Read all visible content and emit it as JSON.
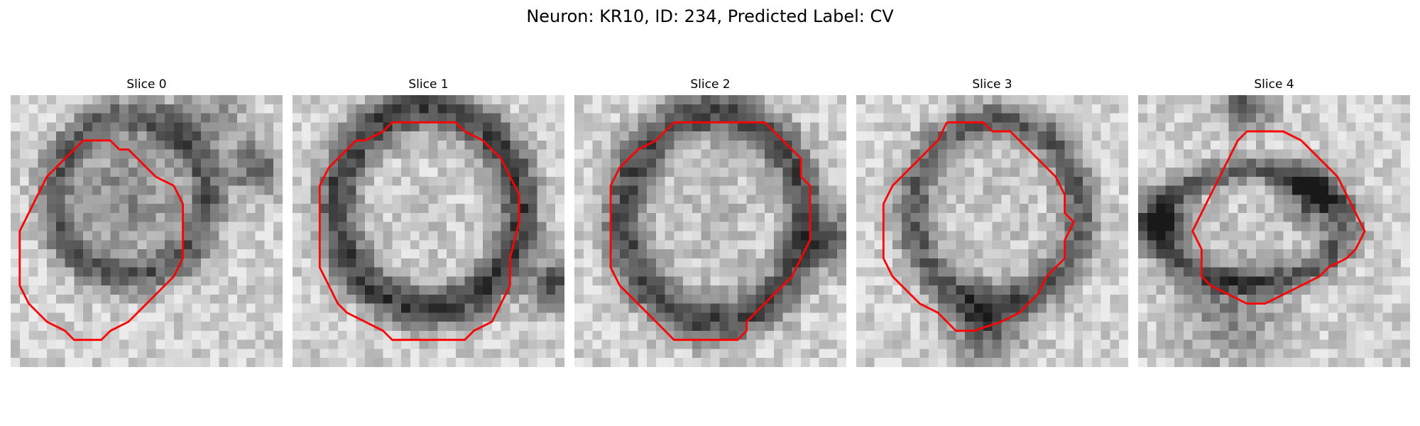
{
  "figure": {
    "title": "Neuron: KR10, ID: 234, Predicted Label: CV"
  },
  "panels": [
    {
      "title": "Slice 0",
      "image": "grayscale-microscopy-slice",
      "outline_color": "#ff0000"
    },
    {
      "title": "Slice 1",
      "image": "grayscale-microscopy-slice",
      "outline_color": "#ff0000"
    },
    {
      "title": "Slice 2",
      "image": "grayscale-microscopy-slice",
      "outline_color": "#ff0000"
    },
    {
      "title": "Slice 3",
      "image": "grayscale-microscopy-slice",
      "outline_color": "#ff0000"
    },
    {
      "title": "Slice 4",
      "image": "grayscale-microscopy-slice",
      "outline_color": "#ff0000"
    }
  ]
}
